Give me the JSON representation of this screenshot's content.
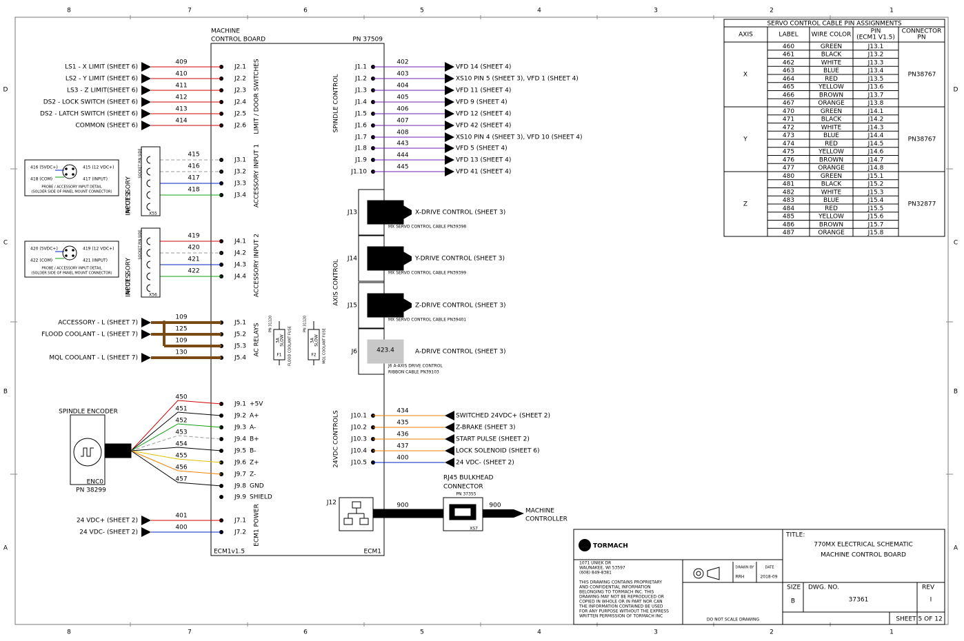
{
  "border": {
    "columns": [
      "8",
      "7",
      "6",
      "5",
      "4",
      "3",
      "2",
      "1"
    ],
    "rows": [
      "D",
      "C",
      "B",
      "A"
    ]
  },
  "board": {
    "title": [
      "MACHINE",
      "CONTROL BOARD"
    ],
    "part_number": "PN 37509",
    "label_left": "ECM1v1.5",
    "label_right": "ECM1"
  },
  "sections": {
    "left": [
      "LIMIT / DOOR SWITCHES",
      "ACCESSORY INPUT 1",
      "ACCESSORY INPUT 2",
      "AC RELAYS",
      "ECM1 POWER"
    ],
    "right": [
      "SPINDLE CONTROL",
      "AXIS CONTROL",
      "24VDC CONTROLS"
    ]
  },
  "left_pins": [
    {
      "pin": "J2.1",
      "wire": "409",
      "label": "LS1 - X LIMIT (SHEET 6)",
      "color": "#d00000"
    },
    {
      "pin": "J2.2",
      "wire": "410",
      "label": "LS2 - Y LIMIT (SHEET 6)",
      "color": "#d00000"
    },
    {
      "pin": "J2.3",
      "wire": "411",
      "label": "LS3 - Z LIMIT(SHEET 6)",
      "color": "#d00000"
    },
    {
      "pin": "J2.4",
      "wire": "412",
      "label": "DS2 - LOCK SWITCH (SHEET 6)",
      "color": "#d00000"
    },
    {
      "pin": "J2.5",
      "wire": "413",
      "label": "DS2 - LATCH SWITCH (SHEET 6)",
      "color": "#d00000"
    },
    {
      "pin": "J2.6",
      "wire": "414",
      "label": "COMMON (SHEET 6)",
      "color": "#d00000"
    },
    {
      "pin": "J3.1",
      "wire": "415",
      "color": "#999999",
      "dashed": true
    },
    {
      "pin": "J3.2",
      "wire": "416",
      "color": "#999999",
      "dashed": true
    },
    {
      "pin": "J3.3",
      "wire": "417",
      "color": "#0020c0"
    },
    {
      "pin": "J3.4",
      "wire": "418",
      "color": "#10a010"
    },
    {
      "pin": "J4.1",
      "wire": "419",
      "color": "#d00000"
    },
    {
      "pin": "J4.2",
      "wire": "420",
      "color": "#999999",
      "dashed": true
    },
    {
      "pin": "J4.3",
      "wire": "421",
      "color": "#0020c0"
    },
    {
      "pin": "J4.4",
      "wire": "422",
      "color": "#10a010"
    },
    {
      "pin": "J5.1",
      "wire": "109",
      "label": "ACCESSORY - L (SHEET 7)",
      "color": "#7a4a14"
    },
    {
      "pin": "J5.2",
      "wire": "125",
      "label": "FLOOD COOLANT - L (SHEET 7)",
      "color": "#7a4a14"
    },
    {
      "pin": "J5.3",
      "wire": "109",
      "color": "#7a4a14"
    },
    {
      "pin": "J5.4",
      "wire": "130",
      "label": "MQL COOLANT - L (SHEET 7)",
      "color": "#7a4a14"
    },
    {
      "pin": "J9.1",
      "signal": "+5V",
      "wire": "450",
      "color": "#d00000"
    },
    {
      "pin": "J9.2",
      "signal": "A+",
      "wire": "451",
      "color": "#000000"
    },
    {
      "pin": "J9.3",
      "signal": "A-",
      "wire": "452",
      "color": "#10a010"
    },
    {
      "pin": "J9.4",
      "signal": "B+",
      "wire": "453",
      "color": "#999999",
      "dashed": true
    },
    {
      "pin": "J9.5",
      "signal": "B-",
      "wire": "454",
      "color": "#000000"
    },
    {
      "pin": "J9.6",
      "signal": "Z+",
      "wire": "455",
      "color": "#e0c000"
    },
    {
      "pin": "J9.7",
      "signal": "Z-",
      "wire": "456",
      "color": "#f08000"
    },
    {
      "pin": "J9.8",
      "signal": "GND",
      "wire": "457",
      "color": "#000000"
    },
    {
      "pin": "J9.9",
      "signal": "SHIELD"
    },
    {
      "pin": "J7.1",
      "wire": "401",
      "label": "24 VDC+ (SHEET 2)",
      "color": "#d00000"
    },
    {
      "pin": "J7.2",
      "wire": "400",
      "label": "24 VDC- (SHEET 2)",
      "color": "#0020c0"
    }
  ],
  "right_pins": [
    {
      "pin": "J1.1",
      "wire": "402",
      "label": "VFD 14 (SHEET 4)",
      "color": "#6a1fb0"
    },
    {
      "pin": "J1.2",
      "wire": "403",
      "label": "XS10 PIN 5 (SHEET 3), VFD 1 (SHEET 4)",
      "color": "#6a1fb0"
    },
    {
      "pin": "J1.3",
      "wire": "404",
      "label": "VFD 11 (SHEET 4)",
      "color": "#6a1fb0"
    },
    {
      "pin": "J1.4",
      "wire": "405",
      "label": "VFD 9 (SHEET 4)",
      "color": "#6a1fb0"
    },
    {
      "pin": "J1.5",
      "wire": "406",
      "label": "VFD 12 (SHEET 4)",
      "color": "#6a1fb0"
    },
    {
      "pin": "J1.6",
      "wire": "407",
      "label": "VFD 42 (SHEET 4)",
      "color": "#6a1fb0"
    },
    {
      "pin": "J1.7",
      "wire": "408",
      "label": "XS10 PIN 4 (SHEET 3), VFD 10 (SHEET 4)",
      "color": "#6a1fb0"
    },
    {
      "pin": "J1.8",
      "wire": "443",
      "label": "VFD 5 (SHEET 4)",
      "color": "#6a1fb0"
    },
    {
      "pin": "J1.9",
      "wire": "444",
      "label": "VFD 13 (SHEET 4)",
      "color": "#6a1fb0"
    },
    {
      "pin": "J1.10",
      "wire": "445",
      "label": "VFD 41 (SHEET 4)",
      "color": "#6a1fb0"
    },
    {
      "pin": "J10.1",
      "wire": "434",
      "label": "SWITCHED 24VDC+ (SHEET 2)",
      "color": "#f08000"
    },
    {
      "pin": "J10.2",
      "wire": "435",
      "label": "Z-BRAKE (SHEET 3)",
      "color": "#f08000"
    },
    {
      "pin": "J10.3",
      "wire": "436",
      "label": "START PULSE (SHEET 2)",
      "color": "#f08000"
    },
    {
      "pin": "J10.4",
      "wire": "437",
      "label": "LOCK SOLENOID (SHEET 6)",
      "color": "#f08000"
    },
    {
      "pin": "J10.5",
      "wire": "400",
      "label": "24 VDC- (SHEET 2)",
      "color": "#0020c0"
    }
  ],
  "axis_connectors": [
    {
      "ref": "J13",
      "label": "X-DRIVE CONTROL (SHEET 3)",
      "cable": [
        "MX SERVO CONTROL CABLE PN39398"
      ]
    },
    {
      "ref": "J14",
      "label": "Y-DRIVE CONTROL (SHEET 3)",
      "cable": [
        "MX SERVO CONTROL CABLE PN39399"
      ]
    },
    {
      "ref": "J15",
      "label": "Z-DRIVE CONTROL (SHEET 3)",
      "cable": [
        "MX SERVO CONTROL CABLE PN39401"
      ]
    },
    {
      "ref": "J6",
      "label": "A-DRIVE CONTROL (SHEET 3)",
      "box": "423.4",
      "cable": [
        "J6 A-AXIS DRIVE CONTROL",
        "RIBBON CABLE PN39103"
      ]
    }
  ],
  "accessory_inputs": [
    {
      "title": [
        "ACCESSORY",
        "INPUT 1"
      ],
      "ref": "X55",
      "socket": "SOCKET PIN SIDE",
      "pins": [
        "416 (5VDC+)",
        "415 (12 VDC+)",
        "418 (COM)",
        "417 (INPUT)"
      ],
      "detail": [
        "PROBE / ACCESSORY INPUT DETAIL",
        "(SOLDER SIDE OF PANEL MOUNT CONNECTOR)"
      ]
    },
    {
      "title": [
        "ACCESSORY",
        "INPUT 2"
      ],
      "ref": "X56",
      "socket": "SOCKET PIN SIDE",
      "pins": [
        "420 (5VDC+)",
        "419 (12 VDC+)",
        "422 (COM)",
        "421 (INPUT)"
      ],
      "detail": [
        "PROBE / ACCESSORY INPUT DETAIL",
        "(SOLDER SIDE OF PANEL MOUNT CONNECTOR)"
      ]
    }
  ],
  "fuses": [
    {
      "pn": "PN 31120",
      "rating": [
        "3A",
        "SLOW"
      ],
      "ref": "F1",
      "name": "FLOOD COOLANT FUSE"
    },
    {
      "pn": "PN 31120",
      "rating": [
        "3A",
        "SLOW"
      ],
      "ref": "F2",
      "name": "MQL COOLANT FUSE"
    }
  ],
  "encoder": {
    "title": "SPINDLE ENCODER",
    "ref": "ENC0",
    "pn": "PN 38299"
  },
  "network": {
    "ref": "J12",
    "wire": "900",
    "bulkhead": [
      "RJ45 BULKHEAD",
      "CONNECTOR"
    ],
    "bulkhead_pn": "PN 37355",
    "bulkhead_ref": "XS7",
    "wire_out": "900",
    "destination": [
      "MACHINE",
      "CONTROLLER"
    ]
  },
  "servo_table": {
    "title": "SERVO CONTROL CABLE PIN ASSIGNMENTS",
    "headers": [
      [
        "AXIS"
      ],
      [
        "LABEL"
      ],
      [
        "WIRE COLOR"
      ],
      [
        "PIN",
        "(ECM1 V1.5)"
      ],
      [
        "CONNECTOR",
        "PN"
      ]
    ],
    "groups": [
      {
        "axis": "X",
        "connector": "PN38767",
        "rows": [
          [
            "460",
            "GREEN",
            "J13.1"
          ],
          [
            "461",
            "BLACK",
            "J13.2"
          ],
          [
            "462",
            "WHITE",
            "J13.3"
          ],
          [
            "463",
            "BLUE",
            "J13.4"
          ],
          [
            "464",
            "RED",
            "J13.5"
          ],
          [
            "465",
            "YELLOW",
            "J13.6"
          ],
          [
            "466",
            "BROWN",
            "J13.7"
          ],
          [
            "467",
            "ORANGE",
            "J13.8"
          ]
        ]
      },
      {
        "axis": "Y",
        "connector": "PN38767",
        "rows": [
          [
            "470",
            "GREEN",
            "J14.1"
          ],
          [
            "471",
            "BLACK",
            "J14.2"
          ],
          [
            "472",
            "WHITE",
            "J14.3"
          ],
          [
            "473",
            "BLUE",
            "J14.4"
          ],
          [
            "474",
            "RED",
            "J14.5"
          ],
          [
            "475",
            "YELLOW",
            "J14.6"
          ],
          [
            "476",
            "BROWN",
            "J14.7"
          ],
          [
            "477",
            "ORANGE",
            "J14.8"
          ]
        ]
      },
      {
        "axis": "Z",
        "connector": "PN32877",
        "rows": [
          [
            "480",
            "GREEN",
            "J15.1"
          ],
          [
            "481",
            "BLACK",
            "J15.2"
          ],
          [
            "482",
            "WHITE",
            "J15.3"
          ],
          [
            "483",
            "BLUE",
            "J15.4"
          ],
          [
            "484",
            "RED",
            "J15.5"
          ],
          [
            "485",
            "YELLOW",
            "J15.6"
          ],
          [
            "486",
            "BROWN",
            "J15.7"
          ],
          [
            "487",
            "ORANGE",
            "J15.8"
          ]
        ]
      }
    ]
  },
  "title_block": {
    "company": "TORMACH",
    "address": [
      "1071 UNIEK DR",
      "WAUNAKEE, WI 53597",
      "(608) 849-8381"
    ],
    "notice": [
      "THIS DRAWING CONTAINS PROPRIETARY",
      "AND CONFIDENTIAL INFORMATION",
      "BELONGING TO TORMACH INC. THIS",
      "DRAWING MAY NOT BE REPRODUCED OR",
      "COPIED IN WHOLE OR IN PART NOR CAN",
      "THE INFORMATION CONTAINED BE USED",
      "FOR ANY PURPOSE WITHOUT THE EXPRESS",
      "WRITTEN PERMISSION OF TORMACH INC"
    ],
    "drawn_by_label": "DRAWN BY",
    "drawn_by": "RRH",
    "date_label": "DATE",
    "date": "2018-09",
    "scale_note": "DO NOT SCALE DRAWING",
    "title_label": "TITLE:",
    "title": [
      "770MX ELECTRICAL SCHEMATIC",
      "MACHINE CONTROL BOARD"
    ],
    "size_label": "SIZE",
    "size": "B",
    "dwg_label": "DWG.  NO.",
    "dwg_no": "37361",
    "rev_label": "REV",
    "rev": "I",
    "sheet": "SHEET 5 OF 12"
  }
}
